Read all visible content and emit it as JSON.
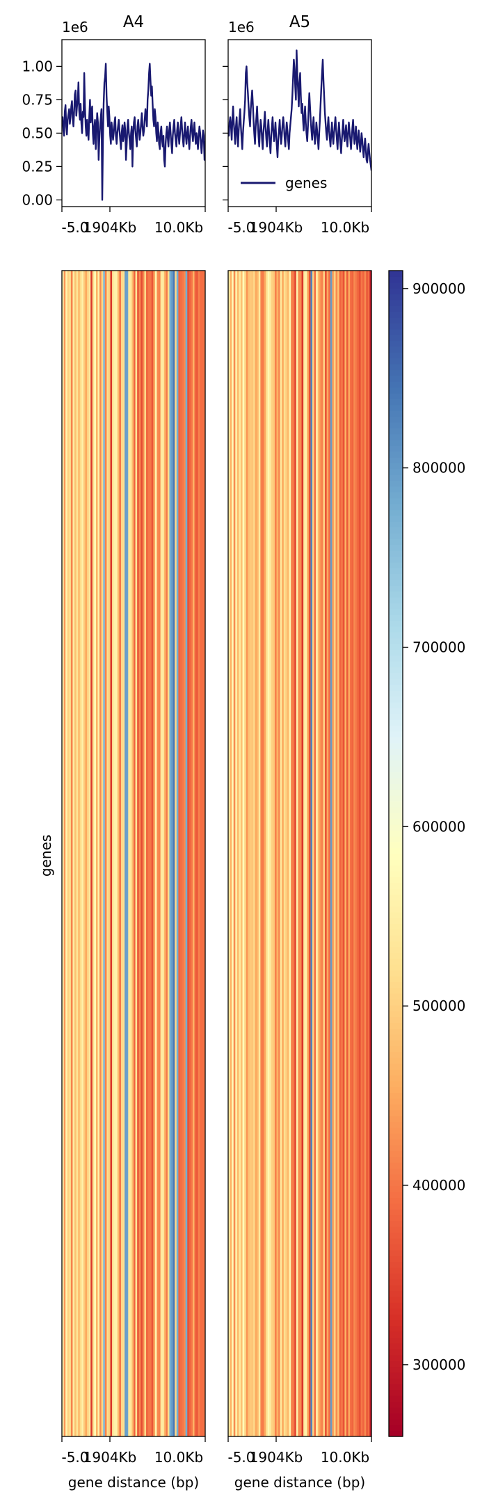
{
  "chart_data": [
    {
      "type": "line",
      "title": "A4",
      "offset_label": "1e6",
      "ylim": [
        -0.05,
        1.2
      ],
      "y_ticks": [
        "0.00",
        "0.25",
        "0.50",
        "0.75",
        "1.00"
      ],
      "x_tick_labels": [
        "-5.0",
        "1904Kb",
        "10.0Kb"
      ],
      "n_bins": 200,
      "series": [
        {
          "name": "genes",
          "color": "#191970",
          "values": [
            0.58,
            0.62,
            0.52,
            0.48,
            0.66,
            0.71,
            0.55,
            0.49,
            0.6,
            0.64,
            0.68,
            0.57,
            0.62,
            0.7,
            0.74,
            0.61,
            0.55,
            0.66,
            0.79,
            0.82,
            0.63,
            0.7,
            0.75,
            0.88,
            0.67,
            0.6,
            0.72,
            0.58,
            0.5,
            0.66,
            0.62,
            0.95,
            0.71,
            0.55,
            0.48,
            0.6,
            0.52,
            0.45,
            0.62,
            0.75,
            0.58,
            0.66,
            0.7,
            0.5,
            0.42,
            0.55,
            0.6,
            0.38,
            0.52,
            0.65,
            0.58,
            0.3,
            0.45,
            0.55,
            0.62,
            0.68,
            0.0,
            0.45,
            0.72,
            0.88,
            0.92,
            1.02,
            0.78,
            0.66,
            0.55,
            0.7,
            0.62,
            0.48,
            0.42,
            0.58,
            0.52,
            0.45,
            0.5,
            0.58,
            0.62,
            0.48,
            0.42,
            0.5,
            0.55,
            0.6,
            0.52,
            0.45,
            0.38,
            0.5,
            0.56,
            0.44,
            0.48,
            0.58,
            0.52,
            0.3,
            0.42,
            0.55,
            0.6,
            0.5,
            0.45,
            0.38,
            0.5,
            0.55,
            0.25,
            0.48,
            0.58,
            0.62,
            0.52,
            0.46,
            0.4,
            0.55,
            0.6,
            0.52,
            0.45,
            0.5,
            0.58,
            0.65,
            0.55,
            0.48,
            0.52,
            0.6,
            0.68,
            0.62,
            0.55,
            0.75,
            0.82,
            0.95,
            1.02,
            0.9,
            0.78,
            0.85,
            0.72,
            0.6,
            0.55,
            0.68,
            0.62,
            0.5,
            0.44,
            0.58,
            0.52,
            0.42,
            0.38,
            0.5,
            0.55,
            0.45,
            0.4,
            0.48,
            0.3,
            0.25,
            0.42,
            0.5,
            0.55,
            0.46,
            0.4,
            0.52,
            0.58,
            0.5,
            0.42,
            0.35,
            0.48,
            0.55,
            0.6,
            0.5,
            0.45,
            0.4,
            0.52,
            0.58,
            0.48,
            0.42,
            0.5,
            0.56,
            0.62,
            0.52,
            0.45,
            0.4,
            0.5,
            0.58,
            0.48,
            0.42,
            0.5,
            0.55,
            0.45,
            0.38,
            0.48,
            0.55,
            0.6,
            0.5,
            0.44,
            0.52,
            0.58,
            0.48,
            0.42,
            0.5,
            0.45,
            0.38,
            0.48,
            0.55,
            0.5,
            0.42,
            0.35,
            0.45,
            0.52,
            0.48,
            0.3,
            0.44
          ]
        }
      ]
    },
    {
      "type": "line",
      "title": "A5",
      "offset_label": "1e6",
      "ylim": [
        -0.05,
        1.2
      ],
      "x_tick_labels": [
        "-5.0",
        "1904Kb",
        "10.0Kb"
      ],
      "legend": {
        "placement": "lower-left"
      },
      "n_bins": 200,
      "series": [
        {
          "name": "genes",
          "color": "#191970",
          "values": [
            0.52,
            0.48,
            0.58,
            0.62,
            0.55,
            0.45,
            0.6,
            0.7,
            0.58,
            0.5,
            0.42,
            0.55,
            0.62,
            0.48,
            0.4,
            0.52,
            0.6,
            0.68,
            0.55,
            0.46,
            0.38,
            0.5,
            0.58,
            0.65,
            0.75,
            0.95,
            1.0,
            0.88,
            0.8,
            0.7,
            0.62,
            0.55,
            0.68,
            0.75,
            0.82,
            0.72,
            0.6,
            0.5,
            0.42,
            0.55,
            0.62,
            0.7,
            0.58,
            0.48,
            0.4,
            0.52,
            0.6,
            0.55,
            0.45,
            0.38,
            0.5,
            0.58,
            0.66,
            0.55,
            0.46,
            0.4,
            0.52,
            0.6,
            0.5,
            0.42,
            0.35,
            0.48,
            0.55,
            0.62,
            0.52,
            0.44,
            0.5,
            0.58,
            0.48,
            0.4,
            0.32,
            0.45,
            0.52,
            0.6,
            0.5,
            0.42,
            0.48,
            0.56,
            0.62,
            0.55,
            0.46,
            0.4,
            0.5,
            0.58,
            0.52,
            0.44,
            0.38,
            0.5,
            0.56,
            0.62,
            0.68,
            0.78,
            0.92,
            1.05,
            0.98,
            0.85,
            0.75,
            1.12,
            0.95,
            0.82,
            0.7,
            0.88,
            0.95,
            0.78,
            0.65,
            0.72,
            0.6,
            0.52,
            0.62,
            0.7,
            0.58,
            0.5,
            0.44,
            0.55,
            0.68,
            0.8,
            0.7,
            0.6,
            0.52,
            0.45,
            0.55,
            0.62,
            0.5,
            0.42,
            0.48,
            0.58,
            0.52,
            0.45,
            0.38,
            0.5,
            0.6,
            0.72,
            0.85,
            0.95,
            1.05,
            0.9,
            0.78,
            0.66,
            0.58,
            0.5,
            0.45,
            0.55,
            0.62,
            0.52,
            0.46,
            0.4,
            0.5,
            0.58,
            0.48,
            0.42,
            0.5,
            0.56,
            0.62,
            0.52,
            0.45,
            0.38,
            0.5,
            0.58,
            0.5,
            0.42,
            0.35,
            0.45,
            0.52,
            0.6,
            0.5,
            0.44,
            0.5,
            0.56,
            0.46,
            0.4,
            0.5,
            0.58,
            0.52,
            0.45,
            0.38,
            0.46,
            0.54,
            0.6,
            0.5,
            0.42,
            0.48,
            0.55,
            0.45,
            0.38,
            0.46,
            0.52,
            0.44,
            0.36,
            0.42,
            0.5,
            0.45,
            0.38,
            0.32,
            0.4,
            0.46,
            0.38,
            0.3,
            0.28,
            0.36,
            0.42,
            0.35,
            0.3,
            0.26,
            0.22
          ]
        }
      ]
    },
    {
      "type": "heatmap",
      "sample": "A4",
      "ylabel": "genes",
      "xlabel": "gene distance (bp)",
      "x_tick_labels": [
        "-5.0",
        "1904Kb",
        "10.0Kb"
      ],
      "n_bins": 80,
      "values": [
        575000,
        430000,
        560000,
        500000,
        520000,
        410000,
        545000,
        480000,
        530000,
        470000,
        515000,
        555000,
        490000,
        450000,
        505000,
        540000,
        335000,
        520000,
        580000,
        460000,
        555000,
        420000,
        510000,
        760000,
        410000,
        520000,
        495000,
        330000,
        535000,
        555000,
        560000,
        470000,
        400000,
        510000,
        520000,
        800000,
        790000,
        540000,
        535000,
        470000,
        380000,
        530000,
        365000,
        420000,
        355000,
        415000,
        510000,
        380000,
        400000,
        400000,
        365000,
        440000,
        560000,
        420000,
        410000,
        540000,
        545000,
        465000,
        405000,
        520000,
        780000,
        800000,
        840000,
        510000,
        780000,
        380000,
        390000,
        400000,
        420000,
        780000,
        360000,
        380000,
        400000,
        460000,
        380000,
        370000,
        410000,
        390000,
        390000,
        400000
      ]
    },
    {
      "type": "heatmap",
      "sample": "A5",
      "xlabel": "gene distance (bp)",
      "x_tick_labels": [
        "-5.0",
        "1904Kb",
        "10.0Kb"
      ],
      "n_bins": 80,
      "values": [
        540000,
        460000,
        575000,
        420000,
        560000,
        470000,
        540000,
        480000,
        575000,
        510000,
        430000,
        480000,
        490000,
        485000,
        510000,
        450000,
        470000,
        540000,
        410000,
        405000,
        450000,
        520000,
        570000,
        540000,
        500000,
        490000,
        410000,
        460000,
        420000,
        540000,
        450000,
        520000,
        495000,
        470000,
        560000,
        410000,
        400000,
        350000,
        560000,
        420000,
        420000,
        330000,
        540000,
        560000,
        450000,
        360000,
        830000,
        500000,
        390000,
        560000,
        470000,
        430000,
        410000,
        505000,
        360000,
        450000,
        390000,
        800000,
        440000,
        500000,
        420000,
        480000,
        380000,
        400000,
        360000,
        460000,
        370000,
        450000,
        390000,
        380000,
        420000,
        400000,
        380000,
        360000,
        400000,
        380000,
        420000,
        370000,
        390000,
        290000
      ]
    },
    {
      "type": "colorbar",
      "colormap": "RdYlBu",
      "range": [
        260000,
        910000
      ],
      "ticks": [
        300000,
        400000,
        500000,
        600000,
        700000,
        800000,
        900000
      ],
      "tick_labels": [
        "300000",
        "400000",
        "500000",
        "600000",
        "700000",
        "800000",
        "900000"
      ]
    }
  ]
}
